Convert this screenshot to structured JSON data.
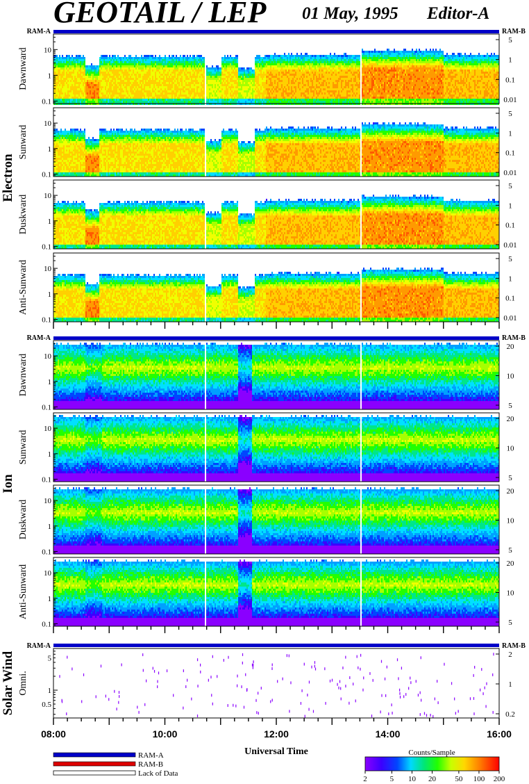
{
  "title": {
    "main": "GEOTAIL / LEP",
    "date": "01 May, 1995",
    "editor": "Editor-A"
  },
  "ram_labels": {
    "a": "RAM-A",
    "b": "RAM-B"
  },
  "colors": {
    "ram_a": "#0000c8",
    "ram_b": "#dd0000"
  },
  "group_labels": {
    "electron": "Electron",
    "ion": "Ion",
    "solar_wind": "Solar Wind"
  },
  "xaxis": {
    "label": "Universal Time",
    "range_hours": [
      8,
      16
    ],
    "tick_labels": [
      "08:00",
      "10:00",
      "12:00",
      "14:00",
      "16:00"
    ],
    "tick_hours": [
      8,
      10,
      12,
      14,
      16
    ],
    "data_gaps_hours": [
      10.72,
      13.5
    ]
  },
  "legend": {
    "items": [
      {
        "label": "RAM-A",
        "color": "#0000c8"
      },
      {
        "label": "RAM-B",
        "color": "#dd0000"
      },
      {
        "label": "Lack of Data",
        "color": "#ffffff"
      }
    ]
  },
  "colorbar": {
    "title": "Counts/Sample",
    "tick_labels": [
      "2",
      "5",
      "10",
      "20",
      "50",
      "100",
      "200"
    ],
    "tick_values": [
      2,
      5,
      10,
      20,
      50,
      100,
      200
    ],
    "range": [
      2,
      200
    ],
    "scale": "log"
  },
  "chart_data": [
    {
      "type": "heatmap",
      "group": "Electron",
      "ylabel": "Dawnward",
      "y_left_scale": "log",
      "y_left_range": [
        0.08,
        40
      ],
      "y_left_ticks": [
        "0.1",
        "1",
        "10"
      ],
      "y_right_ticks": [
        "5",
        "1",
        "0.1",
        "0.01"
      ],
      "top_ram_left": "RAM-A",
      "top_ram_right": "RAM-B"
    },
    {
      "type": "heatmap",
      "group": "Electron",
      "ylabel": "Sunward",
      "y_left_scale": "log",
      "y_left_range": [
        0.08,
        40
      ],
      "y_left_ticks": [
        "0.1",
        "1",
        "10"
      ],
      "y_right_ticks": [
        "5",
        "1",
        "0.1",
        "0.01"
      ]
    },
    {
      "type": "heatmap",
      "group": "Electron",
      "ylabel": "Duskward",
      "y_left_scale": "log",
      "y_left_range": [
        0.08,
        40
      ],
      "y_left_ticks": [
        "0.1",
        "1",
        "10"
      ],
      "y_right_ticks": [
        "5",
        "1",
        "0.1",
        "0.01"
      ]
    },
    {
      "type": "heatmap",
      "group": "Electron",
      "ylabel": "Anti-Sunward",
      "y_left_scale": "log",
      "y_left_range": [
        0.08,
        40
      ],
      "y_left_ticks": [
        "0.1",
        "1",
        "10"
      ],
      "y_right_ticks": [
        "5",
        "1",
        "0.1",
        "0.01"
      ]
    },
    {
      "type": "heatmap",
      "group": "Ion",
      "ylabel": "Dawnward",
      "y_left_scale": "log",
      "y_left_range": [
        0.08,
        40
      ],
      "y_left_ticks": [
        "0.1",
        "1",
        "10"
      ],
      "y_right_ticks": [
        "20",
        "10",
        "5"
      ],
      "top_ram_left": "RAM-A",
      "top_ram_right": "RAM-B"
    },
    {
      "type": "heatmap",
      "group": "Ion",
      "ylabel": "Sunward",
      "y_left_scale": "log",
      "y_left_range": [
        0.08,
        40
      ],
      "y_left_ticks": [
        "0.1",
        "1",
        "10"
      ],
      "y_right_ticks": [
        "20",
        "10",
        "5"
      ]
    },
    {
      "type": "heatmap",
      "group": "Ion",
      "ylabel": "Duskward",
      "y_left_scale": "log",
      "y_left_range": [
        0.08,
        40
      ],
      "y_left_ticks": [
        "0.1",
        "1",
        "10"
      ],
      "y_right_ticks": [
        "20",
        "10",
        "5"
      ]
    },
    {
      "type": "heatmap",
      "group": "Ion",
      "ylabel": "Anti-Sunward",
      "y_left_scale": "log",
      "y_left_range": [
        0.08,
        40
      ],
      "y_left_ticks": [
        "0.1",
        "1",
        "10"
      ],
      "y_right_ticks": [
        "20",
        "10",
        "5"
      ]
    },
    {
      "type": "heatmap",
      "group": "Solar Wind",
      "ylabel": "Omni.",
      "y_left_scale": "log",
      "y_left_range": [
        0.25,
        8
      ],
      "y_left_ticks": [
        "0.5",
        "1",
        "5"
      ],
      "y_right_ticks": [
        "2",
        "1",
        "0.2"
      ],
      "top_ram_left": "RAM-A",
      "top_ram_right": "RAM-B"
    }
  ]
}
